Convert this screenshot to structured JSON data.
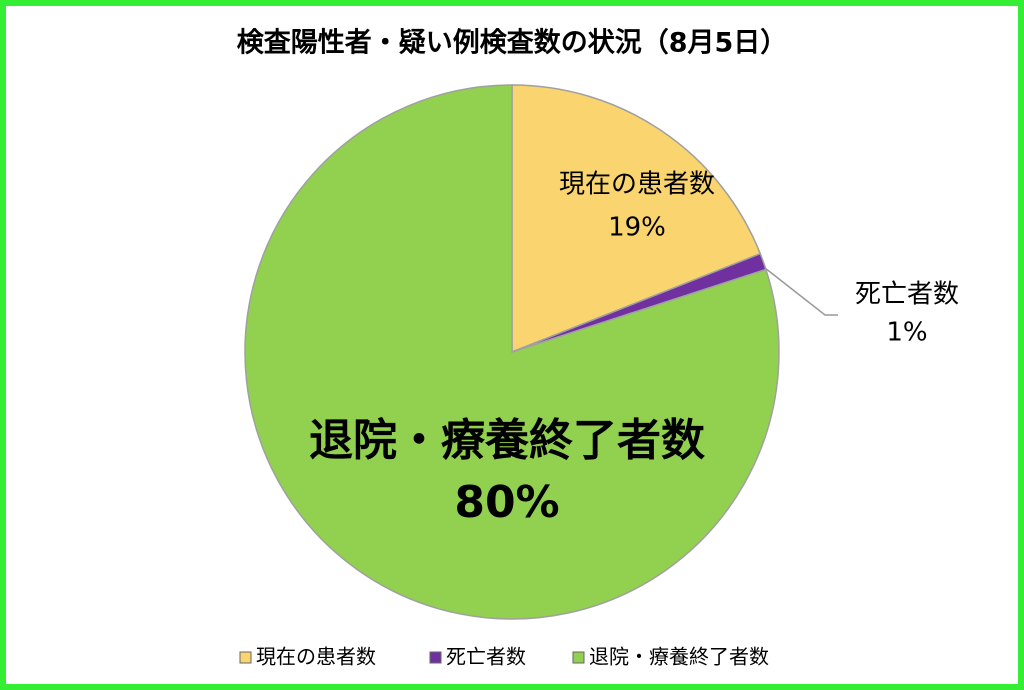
{
  "chart_data": {
    "type": "pie",
    "title": "検査陽性者・疑い例検査数の状況（8月5日）",
    "categories": [
      "現在の患者数",
      "死亡者数",
      "退院・療養終了者数"
    ],
    "values": [
      19,
      1,
      80
    ],
    "value_labels": [
      "19%",
      "1%",
      "80%"
    ],
    "colors": [
      "#fad46e",
      "#7030a0",
      "#92d050"
    ],
    "legend": "bottom"
  }
}
